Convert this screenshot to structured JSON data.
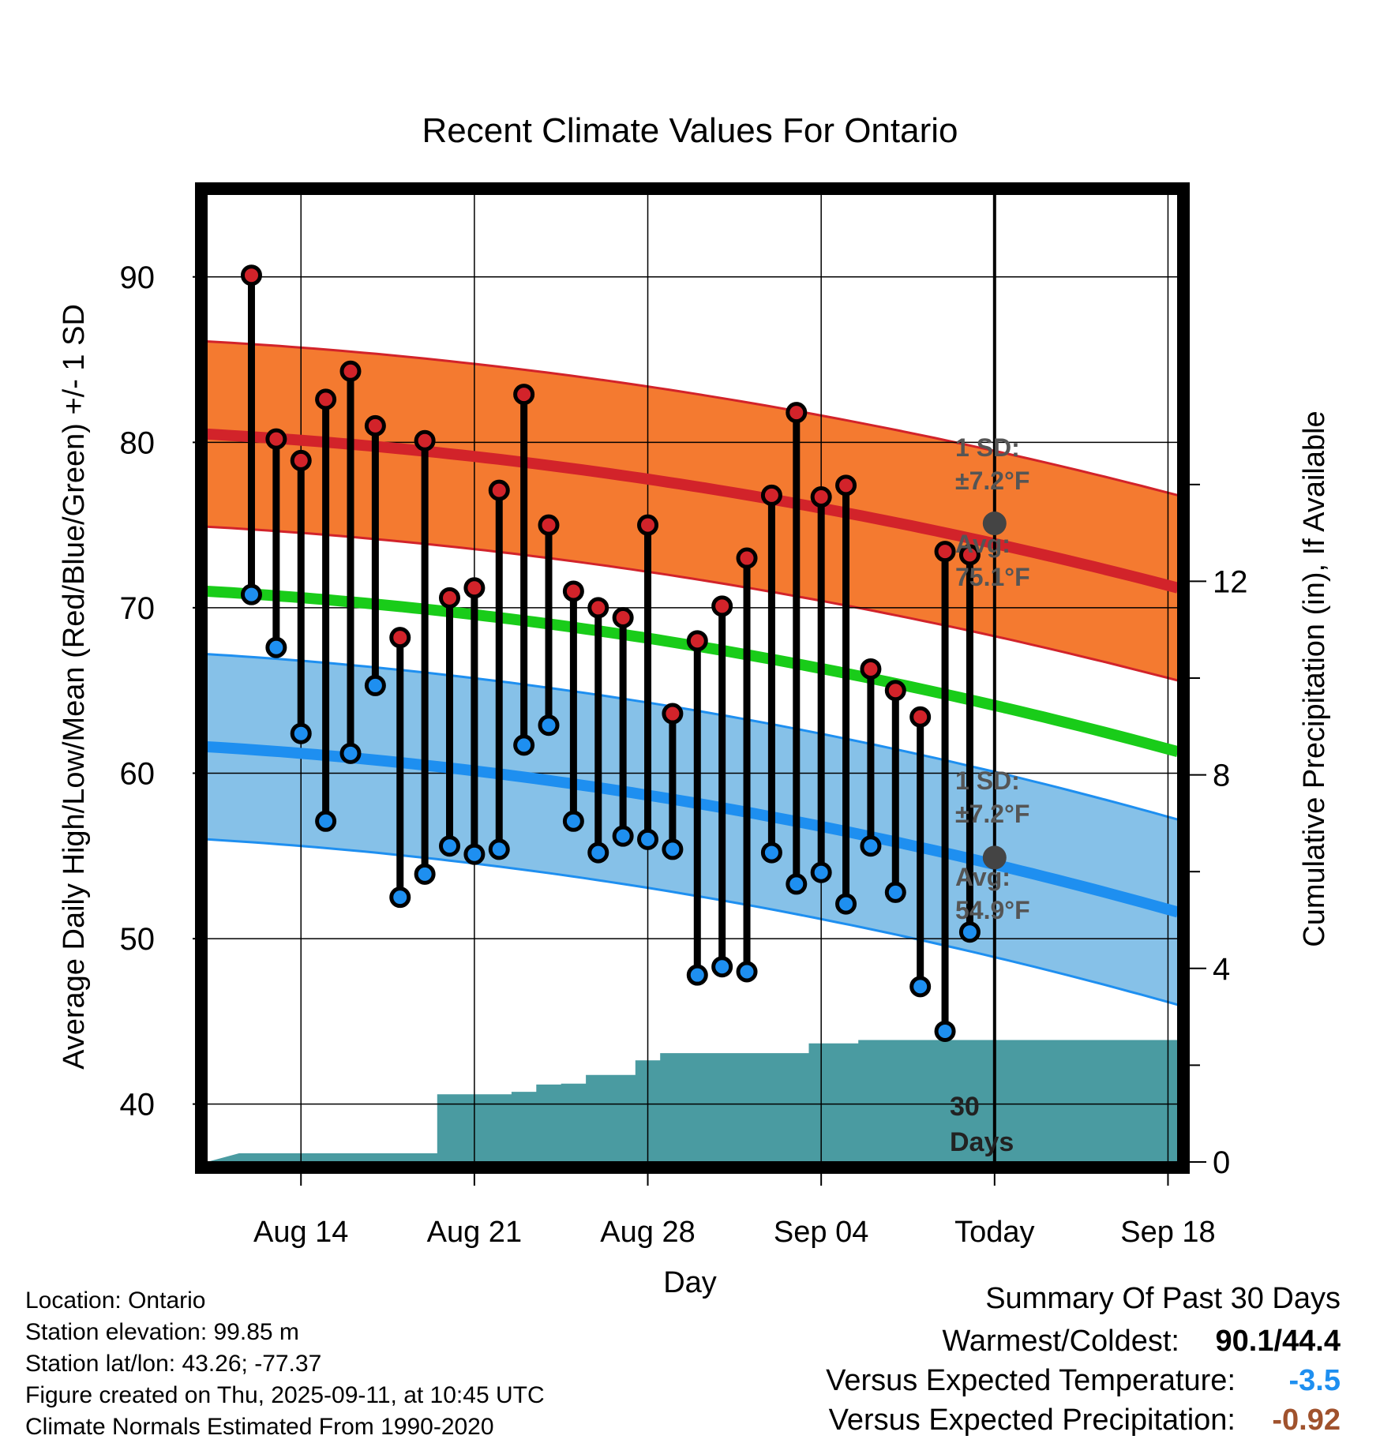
{
  "chart_data": {
    "type": "line",
    "title": "Recent Climate Values For Ontario",
    "xlabel": "Day",
    "ylabel": "Average Daily High/Low/Mean (Red/Blue/Green) +/- 1 SD",
    "y2label": "Cumulative Precipitation (in), If Available",
    "ylim": [
      36.5,
      95
    ],
    "y2lim": [
      0,
      20
    ],
    "yticks": [
      "40",
      "50",
      "60",
      "70",
      "80",
      "90"
    ],
    "y2ticks": [
      "0",
      "4",
      "8",
      "12"
    ],
    "x_range_days": [
      -1.8,
      37.4
    ],
    "xticks": [
      {
        "day": 2,
        "label": "Aug 14"
      },
      {
        "day": 9,
        "label": "Aug 21"
      },
      {
        "day": 16,
        "label": "Aug 28"
      },
      {
        "day": 23,
        "label": "Sep 04"
      },
      {
        "day": 30,
        "label": "Today"
      },
      {
        "day": 37,
        "label": "Sep 18"
      }
    ],
    "high_values": [
      90.1,
      80.2,
      78.9,
      82.6,
      84.3,
      81.0,
      68.2,
      80.1,
      70.6,
      71.2,
      77.1,
      82.9,
      75.0,
      71.0,
      70.0,
      69.4,
      75.0,
      63.6,
      68.0,
      70.1,
      73.0,
      76.8,
      81.8,
      76.7,
      77.4,
      66.3,
      65.0,
      63.4,
      73.4,
      73.2
    ],
    "low_values": [
      70.8,
      67.6,
      62.4,
      57.1,
      61.2,
      65.3,
      52.5,
      53.9,
      55.6,
      55.1,
      55.4,
      61.7,
      62.9,
      57.1,
      55.2,
      56.2,
      56.0,
      55.4,
      47.8,
      48.3,
      48.0,
      55.2,
      53.3,
      54.0,
      52.1,
      55.6,
      52.8,
      47.1,
      44.4,
      50.4
    ],
    "normal_high": {
      "start": 80.5,
      "end": 71.2,
      "today_label": "Avg:",
      "today_value": "75.1°F",
      "sd_label": "1 SD:",
      "sd_value": "±7.2°F"
    },
    "normal_low": {
      "start": 61.6,
      "end": 51.6,
      "today_label": "Avg:",
      "today_value": "54.9°F",
      "sd_label": "1 SD:",
      "sd_value": "±7.2°F"
    },
    "normal_mean": {
      "start": 71.0,
      "end": 61.3
    },
    "precip_cumulative": [
      0.18,
      0.18,
      0.18,
      0.18,
      0.18,
      0.18,
      0.18,
      0.18,
      1.4,
      1.4,
      1.4,
      1.45,
      1.6,
      1.62,
      1.8,
      1.8,
      2.1,
      2.25,
      2.25,
      2.25,
      2.25,
      2.25,
      2.25,
      2.45,
      2.45,
      2.52,
      2.52,
      2.52,
      2.52,
      2.52,
      2.52
    ],
    "precip_label": {
      "line1": "30",
      "line2": "Days"
    },
    "colors": {
      "high": "#d2232a",
      "low": "#1e8ff0",
      "mean": "#19cc19",
      "high_band": "#f47a30",
      "low_band": "#86c1e8",
      "precip": "#4a9ba1"
    }
  },
  "footer": {
    "location": "Location: Ontario",
    "elevation": "Station elevation: 99.85 m",
    "latlon": "Station lat/lon: 43.26; -77.37",
    "created": "Figure created on Thu, 2025-09-11, at 10:45 UTC",
    "normals": "Climate Normals Estimated From 1990-2020"
  },
  "summary": {
    "title": "Summary Of Past 30 Days",
    "warmest_coldest_label": "Warmest/Coldest:",
    "warmest_coldest_value": "90.1/44.4",
    "temp_label": "Versus Expected Temperature:",
    "temp_value": "-3.5",
    "precip_label": "Versus Expected Precipitation:",
    "precip_value": "-0.92",
    "temp_color": "#1e8ff0",
    "precip_color": "#a0522d"
  }
}
